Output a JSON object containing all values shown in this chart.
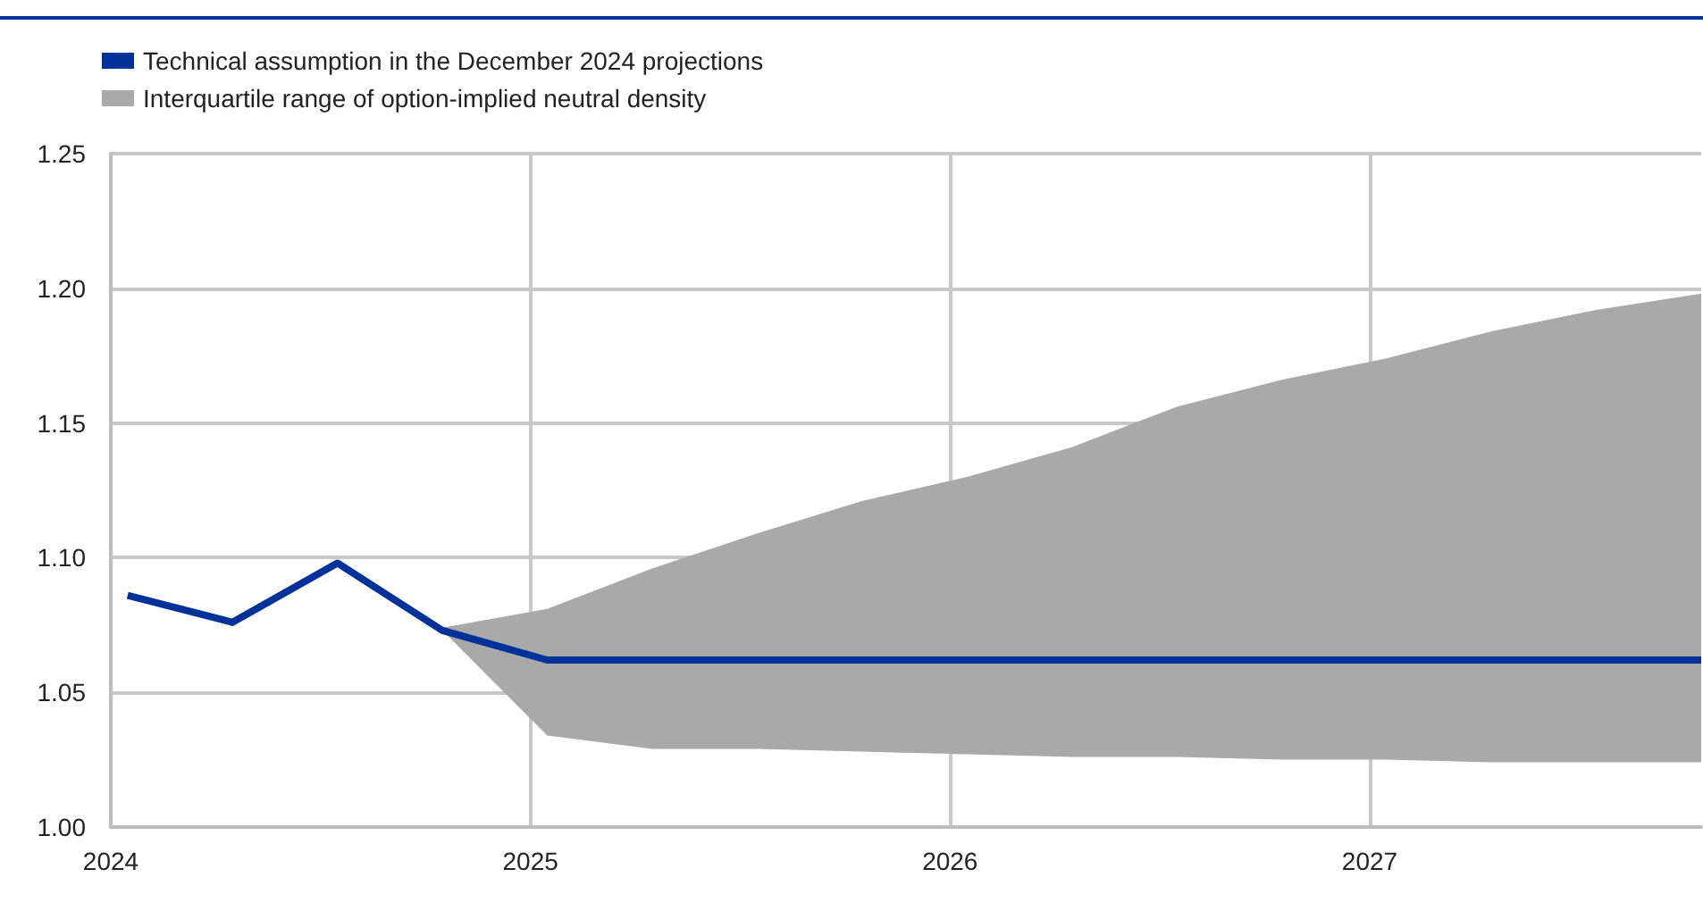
{
  "chart_data": {
    "type": "line",
    "series": [
      {
        "name": "Technical assumption in the December 2024 projections",
        "color": "#003299",
        "x": [
          2024.04,
          2024.29,
          2024.54,
          2024.79,
          2025.04,
          2027.79
        ],
        "values": [
          1.086,
          1.076,
          1.098,
          1.073,
          1.062,
          1.062
        ]
      },
      {
        "name": "Interquartile range of option-implied neutral density",
        "color": "#a9a9a9",
        "x": [
          2024.79,
          2025.04,
          2025.29,
          2025.54,
          2025.79,
          2026.04,
          2026.29,
          2026.54,
          2026.79,
          2027.04,
          2027.29,
          2027.54,
          2027.79
        ],
        "values": [
          null,
          null,
          null,
          null,
          null,
          null,
          null,
          null,
          null,
          null,
          null,
          null,
          null
        ],
        "lower": [
          1.073,
          1.034,
          1.029,
          1.029,
          1.028,
          1.027,
          1.026,
          1.026,
          1.025,
          1.025,
          1.024,
          1.024,
          1.024
        ],
        "upper": [
          1.074,
          1.081,
          1.096,
          1.109,
          1.121,
          1.13,
          1.141,
          1.156,
          1.166,
          1.174,
          1.184,
          1.192,
          1.198
        ]
      }
    ],
    "xlim": [
      2024,
      2027.79
    ],
    "xticks": [
      2024,
      2025,
      2026,
      2027
    ],
    "ylim": [
      1.0,
      1.25
    ],
    "yticks": [
      {
        "value": 1.0,
        "label": "1.00"
      },
      {
        "value": 1.05,
        "label": "1.05"
      },
      {
        "value": 1.1,
        "label": "1.10"
      },
      {
        "value": 1.15,
        "label": "1.15"
      },
      {
        "value": 1.2,
        "label": "1.20"
      },
      {
        "value": 1.25,
        "label": "1.25"
      }
    ],
    "grid": true,
    "legend": "top left",
    "marker": "none",
    "line_style": "solid"
  }
}
